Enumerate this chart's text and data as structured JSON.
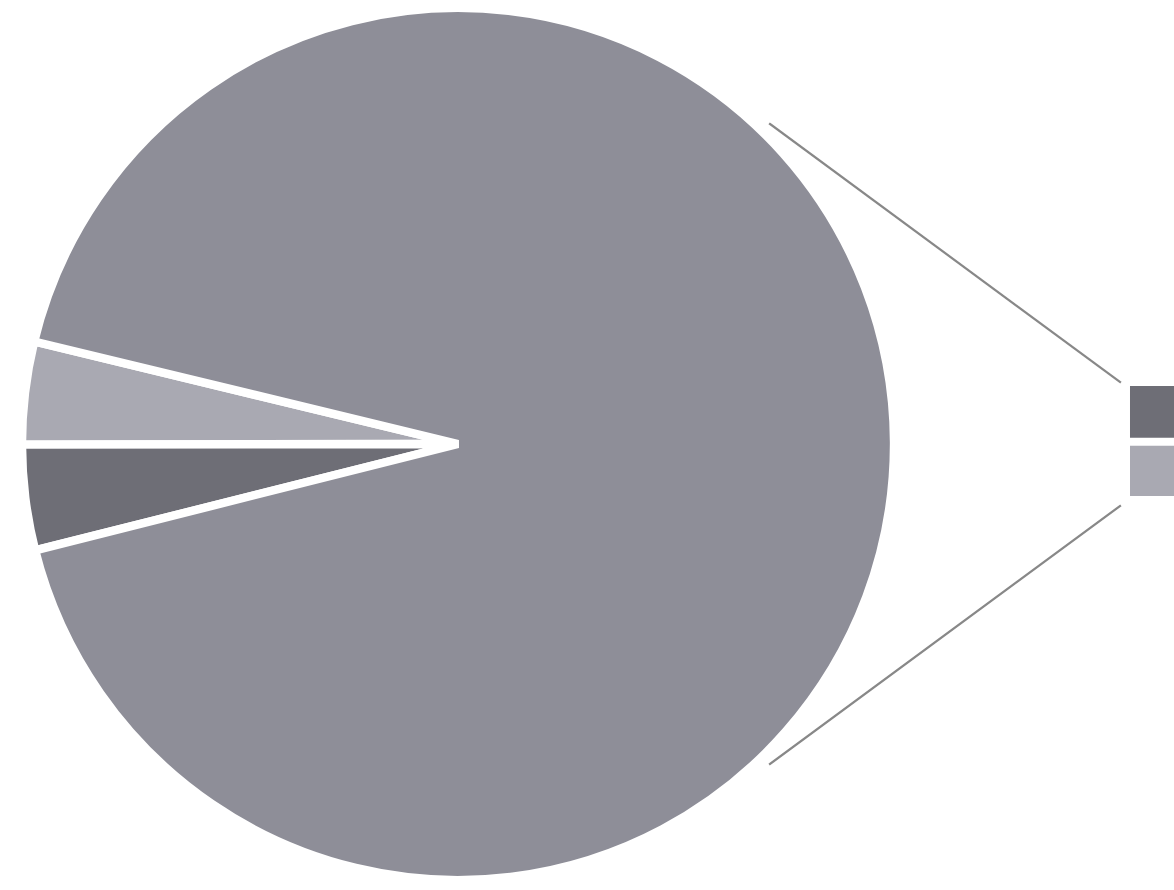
{
  "chart_data": {
    "type": "pie",
    "categories": [
      null,
      null,
      null
    ],
    "values": [
      3.8,
      3.9,
      92.3
    ],
    "colors": [
      "#a9a9b2",
      "#6e6e76",
      "#8e8e98"
    ],
    "legend": false
  }
}
